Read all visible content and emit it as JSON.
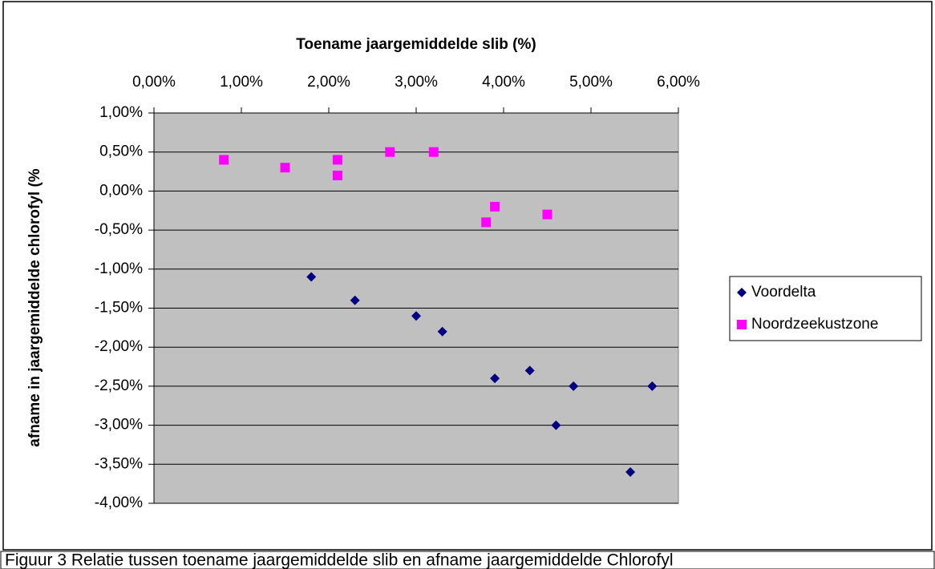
{
  "chart_data": {
    "type": "scatter",
    "xlabel": "Toename jaargemiddelde slib (%)",
    "ylabel": "afname in jaargemiddelde chlorofyl (%",
    "xlim": [
      0,
      6
    ],
    "ylim": [
      -4,
      1
    ],
    "xticks": [
      {
        "value": 0,
        "label": "0,00%"
      },
      {
        "value": 1,
        "label": "1,00%"
      },
      {
        "value": 2,
        "label": "2,00%"
      },
      {
        "value": 3,
        "label": "3,00%"
      },
      {
        "value": 4,
        "label": "4,00%"
      },
      {
        "value": 5,
        "label": "5,00%"
      },
      {
        "value": 6,
        "label": "6,00%"
      }
    ],
    "yticks": [
      {
        "value": 1,
        "label": "1,00%"
      },
      {
        "value": 0.5,
        "label": "0,50%"
      },
      {
        "value": 0,
        "label": "0,00%"
      },
      {
        "value": -0.5,
        "label": "-0,50%"
      },
      {
        "value": -1,
        "label": "-1,00%"
      },
      {
        "value": -1.5,
        "label": "-1,50%"
      },
      {
        "value": -2,
        "label": "-2,00%"
      },
      {
        "value": -2.5,
        "label": "-2,50%"
      },
      {
        "value": -3,
        "label": "-3,00%"
      },
      {
        "value": -3.5,
        "label": "-3,50%"
      },
      {
        "value": -4,
        "label": "-4,00%"
      }
    ],
    "grid": true,
    "legend": "right",
    "series": [
      {
        "name": "Voordelta",
        "color": "#000080",
        "marker": "diamond",
        "x": [
          1.8,
          2.3,
          3.0,
          3.3,
          3.9,
          4.3,
          4.8,
          4.6,
          5.45,
          5.7
        ],
        "values": [
          -1.1,
          -1.4,
          -1.6,
          -1.8,
          -2.4,
          -2.3,
          -2.5,
          -3.0,
          -3.6,
          -2.5
        ]
      },
      {
        "name": "Noordzeekustzone",
        "color": "#ff00ff",
        "marker": "square",
        "x": [
          0.8,
          1.5,
          2.1,
          2.1,
          2.7,
          3.2,
          3.8,
          3.9,
          4.5
        ],
        "values": [
          0.4,
          0.3,
          0.4,
          0.2,
          0.5,
          0.5,
          -0.4,
          -0.2,
          -0.3
        ]
      }
    ]
  },
  "caption": "Figuur 3 Relatie tussen toename jaargemiddelde slib en afname jaargemiddelde Chlorofyl"
}
